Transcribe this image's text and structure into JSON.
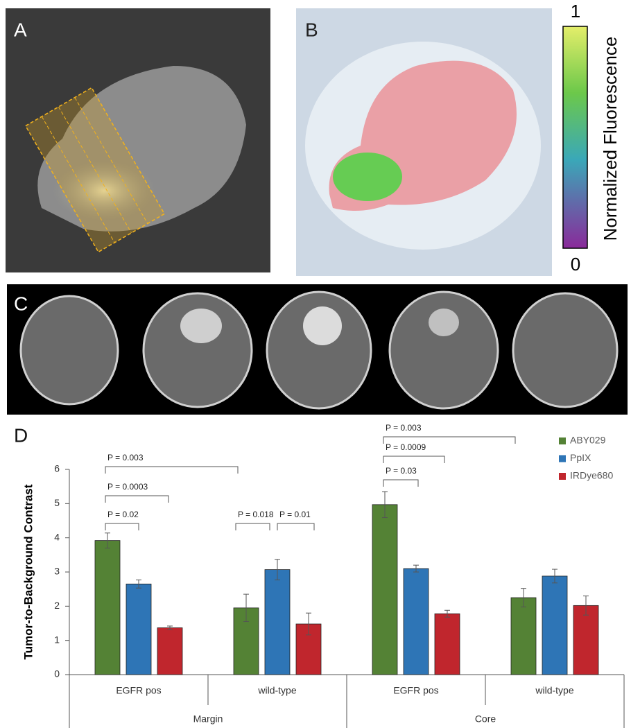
{
  "panels": {
    "a": "A",
    "b": "B",
    "c": "C",
    "d": "D"
  },
  "colorbar": {
    "label": "Normalized Fluorescence",
    "lim": [
      0,
      1
    ]
  },
  "chart_data": {
    "type": "bar",
    "ylabel": "Tumor-to-Background Contrast",
    "groups": [
      {
        "name": "Margin",
        "categories": [
          "EGFR pos",
          "wild-type"
        ]
      },
      {
        "name": "Core",
        "categories": [
          "EGFR pos",
          "wild-type"
        ]
      }
    ],
    "series": [
      {
        "name": "ABY029",
        "color": "#548235",
        "values": [
          3.92,
          1.95,
          4.97,
          2.25
        ],
        "errors": [
          0.22,
          0.4,
          0.38,
          0.27
        ]
      },
      {
        "name": "PpIX",
        "color": "#2e75b6",
        "values": [
          2.65,
          3.07,
          3.1,
          2.88
        ],
        "errors": [
          0.12,
          0.3,
          0.1,
          0.2
        ]
      },
      {
        "name": "IRDye680",
        "color": "#c0262d",
        "values": [
          1.37,
          1.48,
          1.78,
          2.02
        ],
        "errors": [
          0.05,
          0.32,
          0.1,
          0.28
        ]
      }
    ],
    "ylim": [
      0,
      6
    ],
    "yticks": [
      0,
      1,
      2,
      3,
      4,
      5,
      6
    ],
    "legend": "top-right",
    "annotations": [
      "P = 0.003",
      "P = 0.0003",
      "P = 0.02",
      "P = 0.018",
      "P = 0.01",
      "P = 0.003",
      "P = 0.0009",
      "P = 0.03"
    ]
  }
}
